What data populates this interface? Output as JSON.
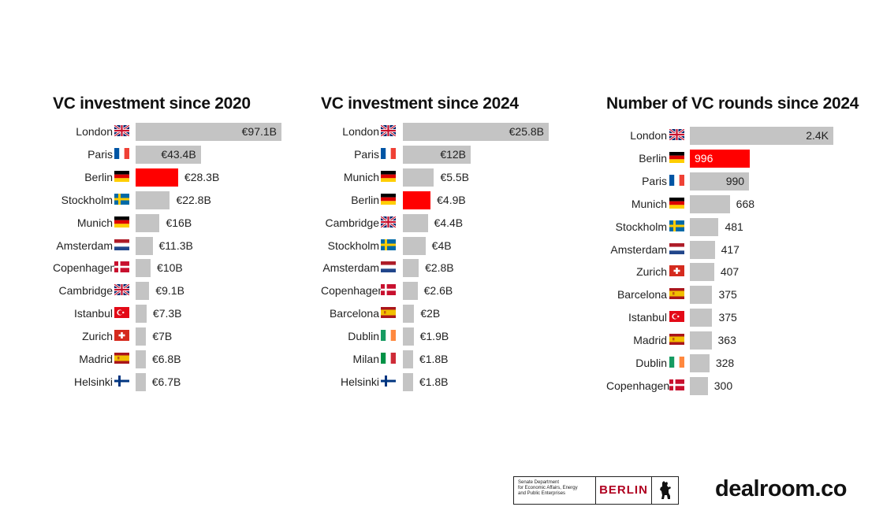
{
  "chart_data": [
    {
      "type": "bar",
      "orientation": "horizontal",
      "title": "VC investment since 2020",
      "categories": [
        "London",
        "Paris",
        "Berlin",
        "Stockholm",
        "Munich",
        "Amsterdam",
        "Copenhagen",
        "Cambridge",
        "Istanbul",
        "Zurich",
        "Madrid",
        "Helsinki"
      ],
      "flags": [
        "gb",
        "fr",
        "de",
        "se",
        "de",
        "nl",
        "dk",
        "gb",
        "tr",
        "ch",
        "es",
        "fi"
      ],
      "values": [
        97.1,
        43.4,
        28.3,
        22.8,
        16,
        11.3,
        10,
        9.1,
        7.3,
        7,
        6.8,
        6.7
      ],
      "labels": [
        "€97.1B",
        "€43.4B",
        "€28.3B",
        "€22.8B",
        "€16B",
        "€11.3B",
        "€10B",
        "€9.1B",
        "€7.3B",
        "€7B",
        "€6.8B",
        "€6.7B"
      ],
      "highlight": "Berlin",
      "xlim": [
        0,
        97.1
      ]
    },
    {
      "type": "bar",
      "orientation": "horizontal",
      "title": "VC investment since 2024",
      "categories": [
        "London",
        "Paris",
        "Munich",
        "Berlin",
        "Cambridge",
        "Stockholm",
        "Amsterdam",
        "Copenhagen",
        "Barcelona",
        "Dublin",
        "Milan",
        "Helsinki"
      ],
      "flags": [
        "gb",
        "fr",
        "de",
        "de",
        "gb",
        "se",
        "nl",
        "dk",
        "es",
        "ie",
        "it",
        "fi"
      ],
      "values": [
        25.8,
        12,
        5.5,
        4.9,
        4.4,
        4,
        2.8,
        2.6,
        2,
        1.9,
        1.8,
        1.8
      ],
      "labels": [
        "€25.8B",
        "€12B",
        "€5.5B",
        "€4.9B",
        "€4.4B",
        "€4B",
        "€2.8B",
        "€2.6B",
        "€2B",
        "€1.9B",
        "€1.8B",
        "€1.8B"
      ],
      "highlight": "Berlin",
      "xlim": [
        0,
        25.8
      ]
    },
    {
      "type": "bar",
      "orientation": "horizontal",
      "title": "Number of VC rounds since 2024",
      "categories": [
        "London",
        "Berlin",
        "Paris",
        "Munich",
        "Stockholm",
        "Amsterdam",
        "Zurich",
        "Barcelona",
        "Istanbul",
        "Madrid",
        "Dublin",
        "Copenhagen"
      ],
      "flags": [
        "gb",
        "de",
        "fr",
        "de",
        "se",
        "nl",
        "ch",
        "es",
        "tr",
        "es",
        "ie",
        "dk"
      ],
      "values": [
        2400,
        996,
        990,
        668,
        481,
        417,
        407,
        375,
        375,
        363,
        328,
        300
      ],
      "labels": [
        "2.4K",
        "996",
        "990",
        "668",
        "481",
        "417",
        "407",
        "375",
        "375",
        "363",
        "328",
        "300"
      ],
      "highlight": "Berlin",
      "xlim": [
        0,
        2400
      ]
    }
  ],
  "footer": {
    "department": "Senate Department\nfor Economic Affairs, Energy\nand Public Enterprises",
    "city": "BERLIN",
    "brand": "dealroom.co"
  },
  "colors": {
    "bar": "#c4c4c4",
    "highlight": "#ff0000"
  }
}
